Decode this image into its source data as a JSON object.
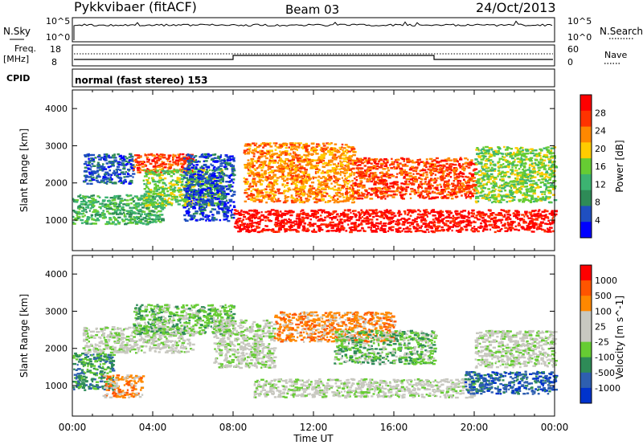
{
  "header": {
    "title": "Pykkvibaer (fitACF)",
    "beam": "Beam 03",
    "date": "24/Oct/2013"
  },
  "top_panels": {
    "nsky_label": "N.Sky",
    "nsky_tick_top": "10^5",
    "nsky_tick_bottom": "10^0",
    "nsearch_label": "N.Search",
    "nsearch_tick_top": "10^5",
    "nsearch_tick_bottom": "10^0",
    "freq_label": "Freq.",
    "freq_unit": "[MHz]",
    "freq_tick_top": "18",
    "freq_tick_bottom": "8",
    "nave_label": "Nave",
    "nave_tick_top": "60",
    "nave_tick_bottom": "0",
    "cpid_label": "CPID",
    "cpid_text": "normal (fast stereo) 153"
  },
  "colors": {
    "power": [
      "#0000ff",
      "#1f4fc0",
      "#2e8b57",
      "#3cb371",
      "#66cc33",
      "#ffcc00",
      "#ff8800",
      "#ff3300",
      "#ff0000"
    ],
    "velocity": [
      "#0033cc",
      "#2e5fb0",
      "#2e8b57",
      "#66cc33",
      "#c8c8c0",
      "#c8c8c0",
      "#ff8800",
      "#ff5500",
      "#ff0000"
    ]
  },
  "chart_data": [
    {
      "type": "heatmap",
      "name": "power",
      "ylabel": "Slant Range [km]",
      "colorbar_label": "Power [dB]",
      "colorbar_ticks": [
        "28",
        "24",
        "20",
        "16",
        "12",
        "8",
        "4"
      ],
      "ylim": [
        180,
        4500
      ],
      "yticks": [
        1000,
        2000,
        3000,
        4000
      ],
      "xlim": [
        "00:00",
        "24:00"
      ],
      "xticks": [
        "00:00",
        "04:00",
        "08:00",
        "12:00",
        "16:00",
        "20:00",
        "00:00"
      ],
      "regions": [
        {
          "t0": 0.0,
          "t1": 4.5,
          "r0": 900,
          "r1": 1700,
          "level": 3
        },
        {
          "t0": 0.5,
          "t1": 3.0,
          "r0": 2000,
          "r1": 2800,
          "level": 1
        },
        {
          "t0": 3.0,
          "t1": 6.0,
          "r0": 2300,
          "r1": 2800,
          "level": 7
        },
        {
          "t0": 3.5,
          "t1": 7.5,
          "r0": 1400,
          "r1": 2400,
          "level": 4
        },
        {
          "t0": 5.5,
          "t1": 8.0,
          "r0": 1000,
          "r1": 2800,
          "level": 1
        },
        {
          "t0": 8.0,
          "t1": 24.0,
          "r0": 700,
          "r1": 1300,
          "level": 8
        },
        {
          "t0": 8.5,
          "t1": 14.0,
          "r0": 1500,
          "r1": 3100,
          "level": 6
        },
        {
          "t0": 14.0,
          "t1": 20.0,
          "r0": 1600,
          "r1": 2700,
          "level": 7
        },
        {
          "t0": 20.0,
          "t1": 24.0,
          "r0": 1500,
          "r1": 3000,
          "level": 4
        }
      ]
    },
    {
      "type": "heatmap",
      "name": "velocity",
      "ylabel": "Slant Range [km]",
      "xlabel": "Time UT",
      "colorbar_label": "Velocity [m s^-1]",
      "colorbar_ticks": [
        "1000",
        "500",
        "100",
        "25",
        "-25",
        "-100",
        "-500",
        "-1000"
      ],
      "ylim": [
        180,
        4500
      ],
      "yticks": [
        1000,
        2000,
        3000,
        4000
      ],
      "xlim": [
        "00:00",
        "24:00"
      ],
      "xticks": [
        "00:00",
        "04:00",
        "08:00",
        "12:00",
        "16:00",
        "20:00",
        "00:00"
      ],
      "regions": [
        {
          "t0": 0.0,
          "t1": 2.0,
          "r0": 900,
          "r1": 1900,
          "level": 2
        },
        {
          "t0": 1.5,
          "t1": 3.5,
          "r0": 700,
          "r1": 1300,
          "level": 6
        },
        {
          "t0": 0.5,
          "t1": 6.0,
          "r0": 1900,
          "r1": 2600,
          "level": 4
        },
        {
          "t0": 3.0,
          "t1": 8.0,
          "r0": 2400,
          "r1": 3200,
          "level": 3
        },
        {
          "t0": 7.0,
          "t1": 10.0,
          "r0": 1500,
          "r1": 2800,
          "level": 4
        },
        {
          "t0": 9.0,
          "t1": 20.0,
          "r0": 700,
          "r1": 1200,
          "level": 4
        },
        {
          "t0": 10.0,
          "t1": 16.0,
          "r0": 2200,
          "r1": 3000,
          "level": 6
        },
        {
          "t0": 13.0,
          "t1": 18.0,
          "r0": 1600,
          "r1": 2500,
          "level": 3
        },
        {
          "t0": 19.5,
          "t1": 24.0,
          "r0": 800,
          "r1": 1400,
          "level": 1
        },
        {
          "t0": 20.0,
          "t1": 24.0,
          "r0": 1500,
          "r1": 2500,
          "level": 4
        }
      ]
    }
  ]
}
